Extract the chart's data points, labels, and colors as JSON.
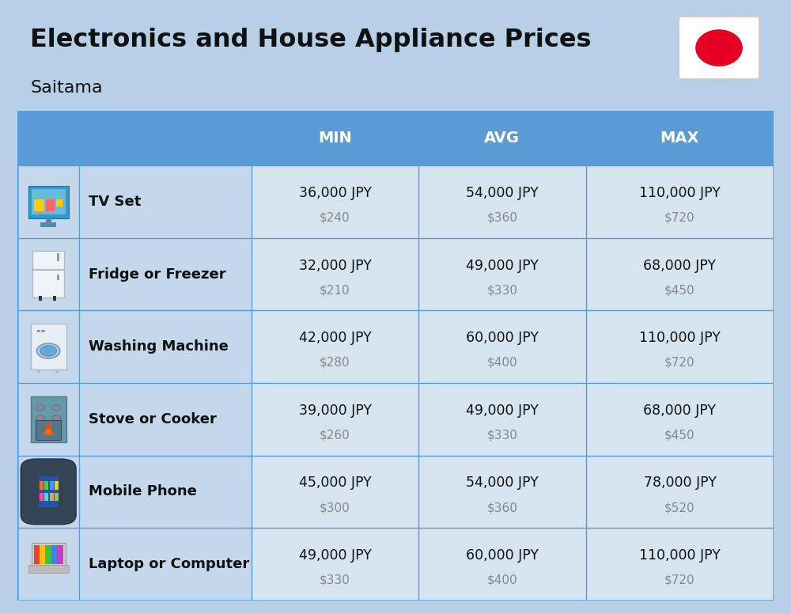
{
  "title": "Electronics and House Appliance Prices",
  "subtitle": "Saitama",
  "bg_color": "#b8cfe8",
  "header_bg_color": "#5b9bd5",
  "header_text_color": "#ffffff",
  "row_bg_color": "#c5d8eb",
  "data_cell_bg": "#d6e4f0",
  "divider_color": "#5b9bd5",
  "flag_circle_color": "#e60026",
  "flag_bg_color": "#ffffff",
  "rows": [
    {
      "label": "TV Set",
      "min_jpy": "36,000 JPY",
      "min_usd": "$240",
      "avg_jpy": "54,000 JPY",
      "avg_usd": "$360",
      "max_jpy": "110,000 JPY",
      "max_usd": "$720"
    },
    {
      "label": "Fridge or Freezer",
      "min_jpy": "32,000 JPY",
      "min_usd": "$210",
      "avg_jpy": "49,000 JPY",
      "avg_usd": "$330",
      "max_jpy": "68,000 JPY",
      "max_usd": "$450"
    },
    {
      "label": "Washing Machine",
      "min_jpy": "42,000 JPY",
      "min_usd": "$280",
      "avg_jpy": "60,000 JPY",
      "avg_usd": "$400",
      "max_jpy": "110,000 JPY",
      "max_usd": "$720"
    },
    {
      "label": "Stove or Cooker",
      "min_jpy": "39,000 JPY",
      "min_usd": "$260",
      "avg_jpy": "49,000 JPY",
      "avg_usd": "$330",
      "max_jpy": "68,000 JPY",
      "max_usd": "$450"
    },
    {
      "label": "Mobile Phone",
      "min_jpy": "45,000 JPY",
      "min_usd": "$300",
      "avg_jpy": "54,000 JPY",
      "avg_usd": "$360",
      "max_jpy": "78,000 JPY",
      "max_usd": "$520"
    },
    {
      "label": "Laptop or Computer",
      "min_jpy": "49,000 JPY",
      "min_usd": "$330",
      "avg_jpy": "60,000 JPY",
      "avg_usd": "$400",
      "max_jpy": "110,000 JPY",
      "max_usd": "$720"
    }
  ]
}
